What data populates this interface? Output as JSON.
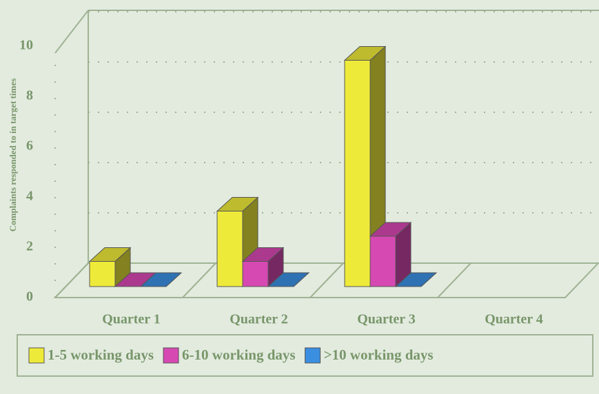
{
  "chart_data": {
    "type": "bar3d",
    "y_label": "Complaints responded to in target times",
    "categories": [
      "Quarter 1",
      "Quarter 2",
      "Quarter 3",
      "Quarter 4"
    ],
    "series": [
      {
        "name": "1-5 working days",
        "color": "#eeea3a",
        "values": [
          1,
          3,
          9,
          null
        ]
      },
      {
        "name": "6-10 working days",
        "color": "#d649b2",
        "values": [
          0,
          1,
          2,
          null
        ]
      },
      {
        "name": ">10 working days",
        "color": "#3b8fe0",
        "values": [
          0,
          0,
          0,
          null
        ]
      }
    ],
    "ylim": [
      0,
      10
    ],
    "yticks": [
      0,
      2,
      4,
      6,
      8,
      10
    ],
    "grid": true,
    "legend": "bottom"
  }
}
